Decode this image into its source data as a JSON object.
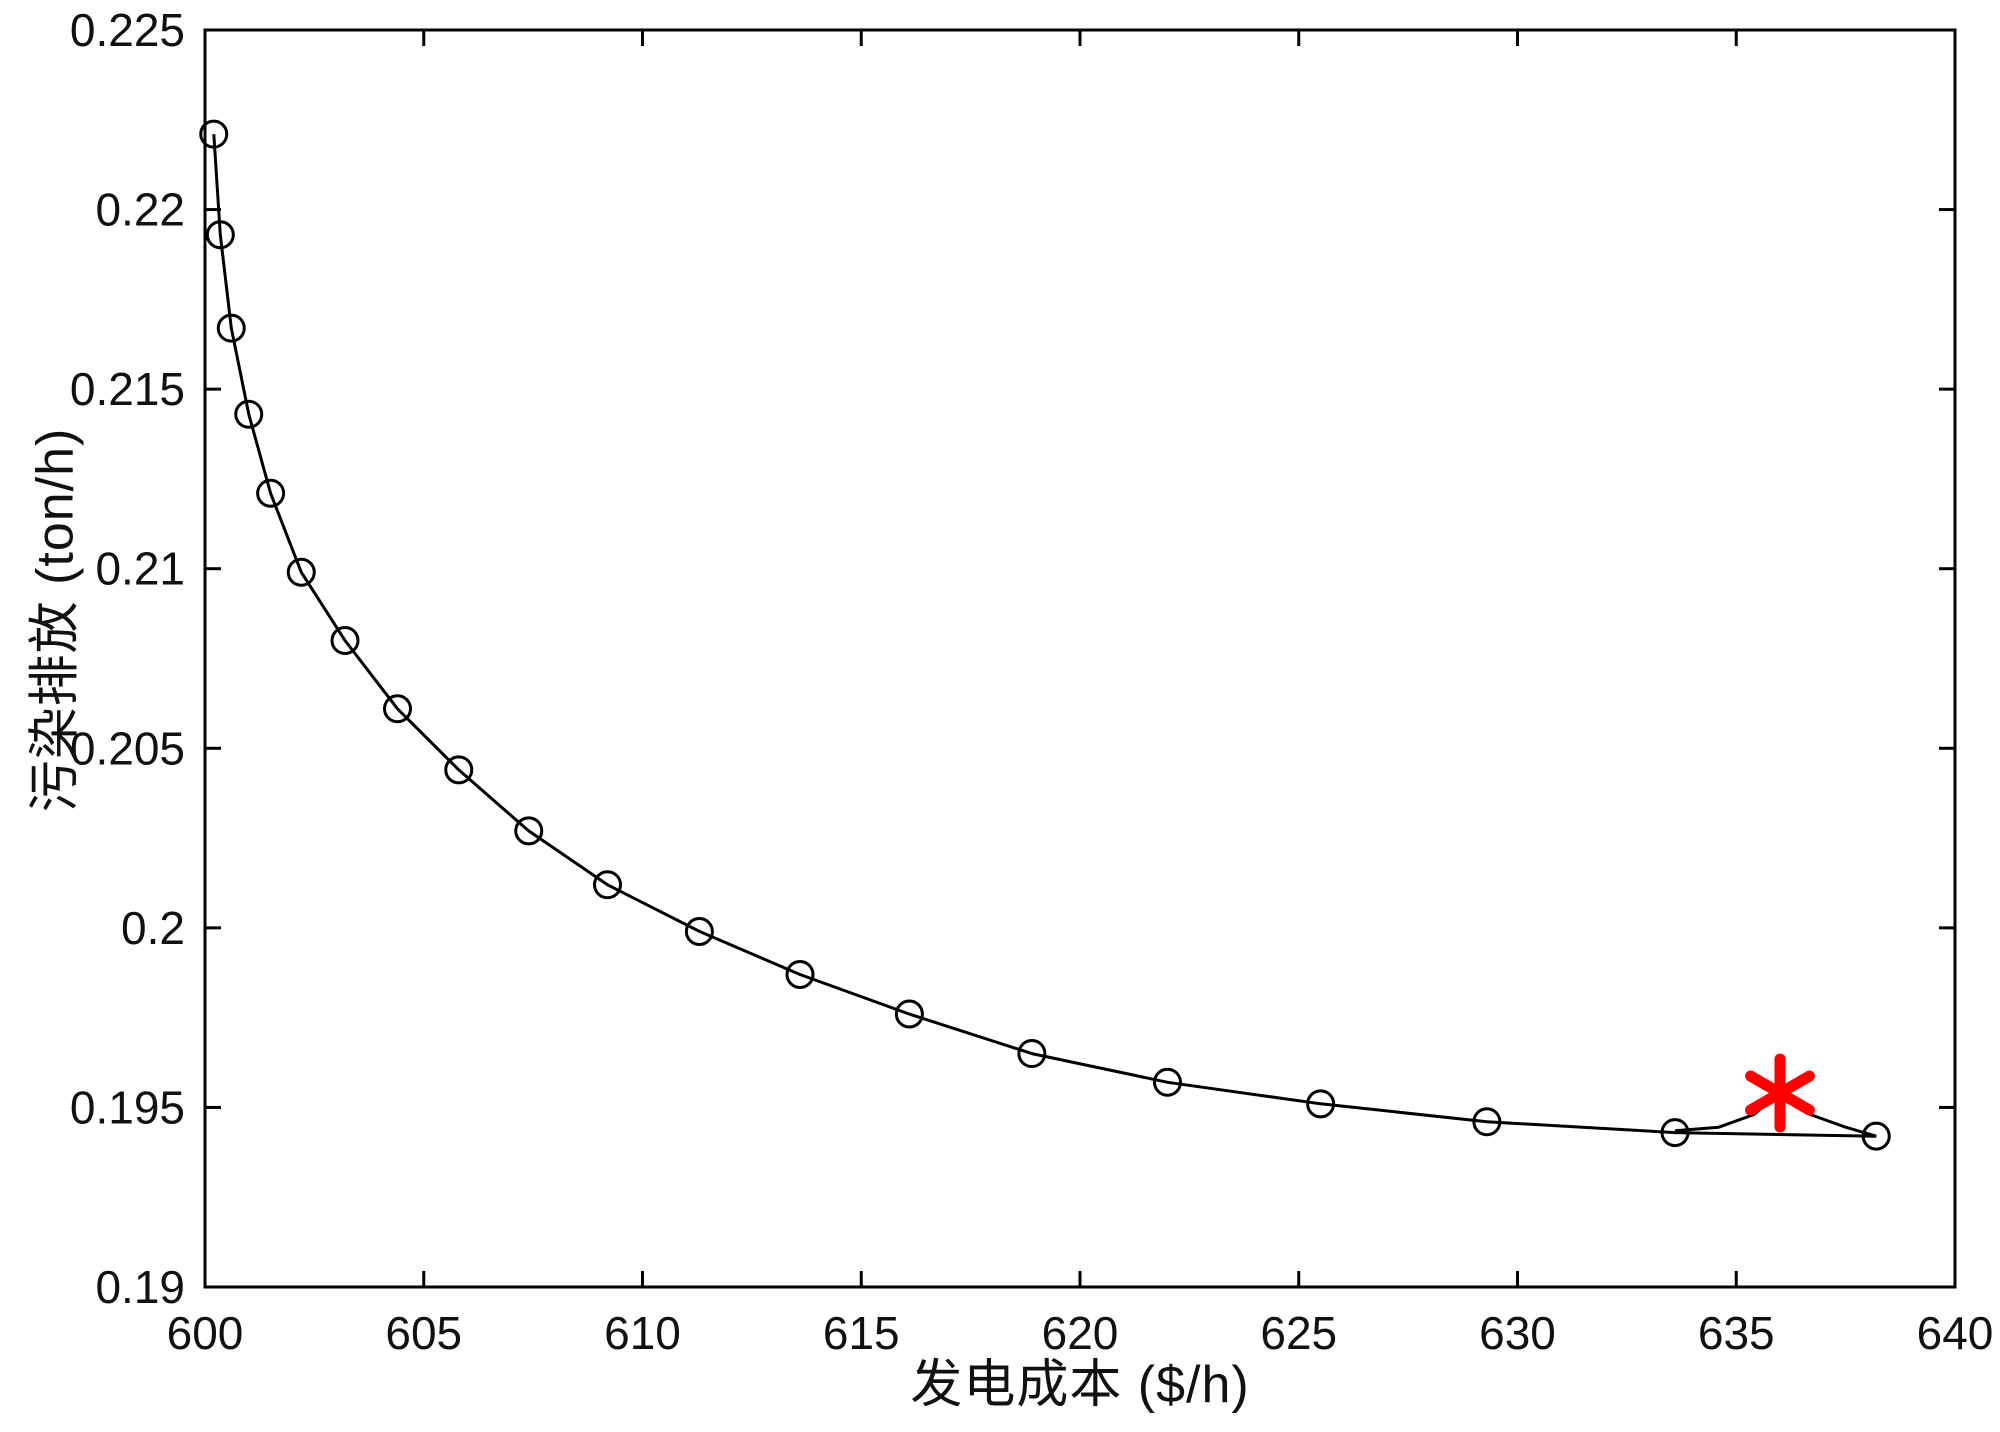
{
  "figure": {
    "background_color": "#ffffff",
    "axes_color": "#000000",
    "pareto_color": "#000000",
    "best_point_color": "#ff0000"
  },
  "chart_data": {
    "type": "line",
    "title": "",
    "xlabel": "发电成本 ($/h)",
    "ylabel": "污染排放 (ton/h)",
    "xlim": [
      600,
      640
    ],
    "ylim": [
      0.19,
      0.225
    ],
    "grid": false,
    "legend": "none",
    "x_ticks": [
      600,
      605,
      610,
      615,
      620,
      625,
      630,
      635,
      640
    ],
    "x_tick_labels": [
      "600",
      "605",
      "610",
      "615",
      "620",
      "625",
      "630",
      "635",
      "640"
    ],
    "y_ticks": [
      0.19,
      0.195,
      0.2,
      0.205,
      0.21,
      0.215,
      0.22,
      0.225
    ],
    "y_tick_labels": [
      "0.19",
      "0.195",
      "0.2",
      "0.205",
      "0.21",
      "0.215",
      "0.22",
      "0.225"
    ],
    "series": [
      {
        "name": "pareto-front",
        "marker": "circle",
        "color": "#000000",
        "x": [
          600.2,
          600.35,
          600.6,
          601.0,
          601.5,
          602.2,
          603.2,
          604.4,
          605.8,
          607.4,
          609.2,
          611.3,
          613.6,
          616.1,
          618.9,
          622.0,
          625.5,
          629.3,
          633.6,
          638.2
        ],
        "y": [
          0.2221,
          0.2193,
          0.2167,
          0.2143,
          0.2121,
          0.2099,
          0.208,
          0.2061,
          0.2044,
          0.2027,
          0.2012,
          0.1999,
          0.1987,
          0.1976,
          0.1965,
          0.1957,
          0.1951,
          0.1946,
          0.1943,
          0.1942
        ]
      },
      {
        "name": "best-compromise-connector",
        "marker": "none",
        "color": "#000000",
        "x": [
          633.6,
          634.6,
          635.4,
          636.0,
          636.7,
          637.5,
          638.2
        ],
        "y": [
          0.19435,
          0.19445,
          0.1948,
          0.1954,
          0.1948,
          0.19445,
          0.1942
        ]
      },
      {
        "name": "best-compromise-point",
        "marker": "asterisk",
        "color": "#ff0000",
        "x": [
          636.0
        ],
        "y": [
          0.1954
        ]
      }
    ]
  }
}
